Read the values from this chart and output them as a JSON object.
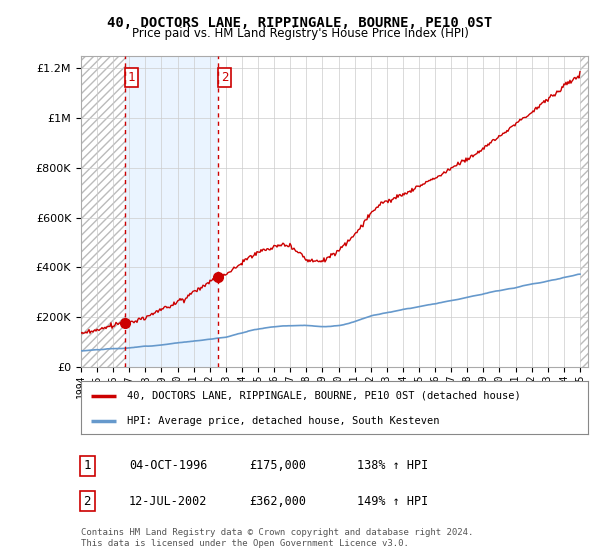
{
  "title": "40, DOCTORS LANE, RIPPINGALE, BOURNE, PE10 0ST",
  "subtitle": "Price paid vs. HM Land Registry's House Price Index (HPI)",
  "legend_line1": "40, DOCTORS LANE, RIPPINGALE, BOURNE, PE10 0ST (detached house)",
  "legend_line2": "HPI: Average price, detached house, South Kesteven",
  "sale1_date": "04-OCT-1996",
  "sale1_price": "£175,000",
  "sale1_hpi": "138% ↑ HPI",
  "sale1_year": 1996.75,
  "sale1_value": 175000,
  "sale2_date": "12-JUL-2002",
  "sale2_price": "£362,000",
  "sale2_hpi": "149% ↑ HPI",
  "sale2_year": 2002.53,
  "sale2_value": 362000,
  "red_line_color": "#cc0000",
  "blue_line_color": "#6699cc",
  "footnote": "Contains HM Land Registry data © Crown copyright and database right 2024.\nThis data is licensed under the Open Government Licence v3.0.",
  "ylim_max": 1250000,
  "xmin": 1994,
  "xmax": 2025.5
}
